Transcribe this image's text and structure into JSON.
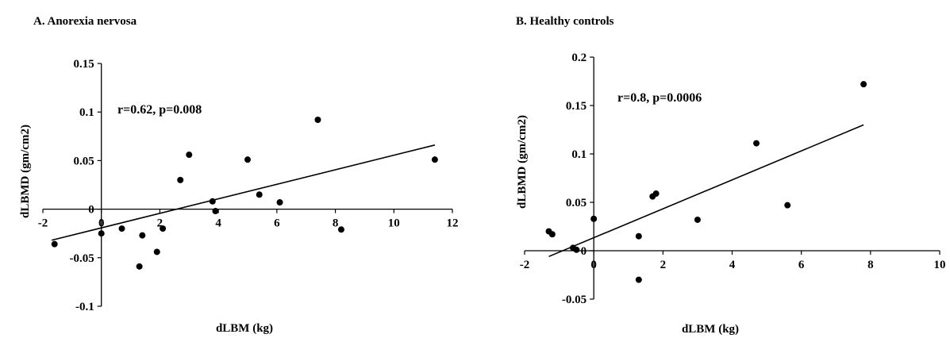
{
  "chart_data": [
    {
      "type": "scatter",
      "title": "A. Anorexia nervosa",
      "xlabel": "dLBM (kg)",
      "ylabel": "dLBMD (gm/cm2)",
      "annotation": "r=0.62, p=0.008",
      "xlim": [
        -2,
        12
      ],
      "ylim": [
        -0.1,
        0.15
      ],
      "xticks": [
        -2,
        0,
        2,
        4,
        6,
        8,
        10,
        12
      ],
      "yticks": [
        -0.1,
        -0.05,
        0,
        0.05,
        0.1,
        0.15
      ],
      "xtick_labels": [
        "-2",
        "0",
        "2",
        "4",
        "6",
        "8",
        "10",
        "12"
      ],
      "ytick_labels": [
        "-0.1",
        "-0.05",
        "0",
        "0.05",
        "0.1",
        "0.15"
      ],
      "points": [
        {
          "x": -1.6,
          "y": -0.036
        },
        {
          "x": 0.0,
          "y": -0.025
        },
        {
          "x": 0.7,
          "y": -0.02
        },
        {
          "x": 1.3,
          "y": -0.059
        },
        {
          "x": 1.4,
          "y": -0.027
        },
        {
          "x": 1.9,
          "y": -0.044
        },
        {
          "x": 2.1,
          "y": -0.02
        },
        {
          "x": 2.7,
          "y": 0.03
        },
        {
          "x": 3.0,
          "y": 0.056
        },
        {
          "x": 3.8,
          "y": 0.008
        },
        {
          "x": 3.9,
          "y": -0.002
        },
        {
          "x": 5.0,
          "y": 0.051
        },
        {
          "x": 5.4,
          "y": 0.015
        },
        {
          "x": 6.1,
          "y": 0.007
        },
        {
          "x": 7.4,
          "y": 0.092
        },
        {
          "x": 8.2,
          "y": -0.021
        },
        {
          "x": 11.4,
          "y": 0.051
        }
      ],
      "trendline": {
        "x": [
          -1.7,
          11.4
        ],
        "y": [
          -0.032,
          0.066
        ]
      }
    },
    {
      "type": "scatter",
      "title": "B. Healthy controls",
      "xlabel": "dLBM (kg)",
      "ylabel": "dLBMD (gm/cm2)",
      "annotation": "r=0.8, p=0.0006",
      "xlim": [
        -2,
        10
      ],
      "ylim": [
        -0.05,
        0.2
      ],
      "xticks": [
        -2,
        0,
        2,
        4,
        6,
        8,
        10
      ],
      "yticks": [
        -0.05,
        0,
        0.05,
        0.1,
        0.15,
        0.2
      ],
      "xtick_labels": [
        "-2",
        "0",
        "2",
        "4",
        "6",
        "8",
        "10"
      ],
      "ytick_labels": [
        "-0.05",
        "0",
        "0.05",
        "0.1",
        "0.15",
        "0.2"
      ],
      "points": [
        {
          "x": -1.3,
          "y": 0.02
        },
        {
          "x": -1.2,
          "y": 0.017
        },
        {
          "x": -0.6,
          "y": 0.003
        },
        {
          "x": -0.5,
          "y": 0.001
        },
        {
          "x": 0.0,
          "y": 0.033
        },
        {
          "x": 1.3,
          "y": 0.015
        },
        {
          "x": 1.3,
          "y": -0.03
        },
        {
          "x": 1.7,
          "y": 0.056
        },
        {
          "x": 1.8,
          "y": 0.059
        },
        {
          "x": 3.0,
          "y": 0.032
        },
        {
          "x": 4.7,
          "y": 0.111
        },
        {
          "x": 5.6,
          "y": 0.047
        },
        {
          "x": 7.8,
          "y": 0.172
        }
      ],
      "trendline": {
        "x": [
          -1.3,
          7.8
        ],
        "y": [
          -0.006,
          0.13
        ]
      }
    }
  ]
}
